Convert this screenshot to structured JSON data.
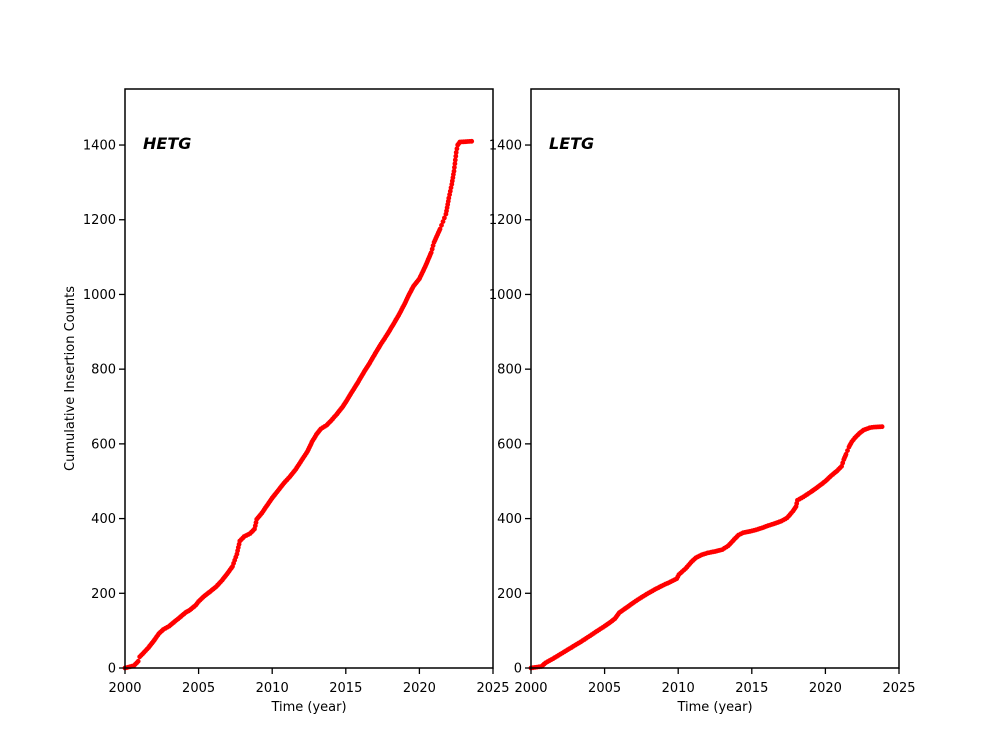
{
  "figure": {
    "background": "#ffffff",
    "marker_color": "#ff0000",
    "axis_color": "#000000"
  },
  "chart_data": [
    {
      "type": "scatter",
      "panel": "left",
      "title": "HETG",
      "xlabel": "Time (year)",
      "ylabel": "Cumulative Insertion Counts",
      "xlim": [
        2000,
        2025
      ],
      "ylim": [
        0,
        1550
      ],
      "xticks": [
        2000,
        2005,
        2010,
        2015,
        2020,
        2025
      ],
      "yticks": [
        0,
        200,
        400,
        600,
        800,
        1000,
        1200,
        1400
      ],
      "grid": false,
      "legend": "none",
      "marker_color": "#ff0000",
      "final_value": 1408,
      "points_note": "cumulative insertion count vs decimal year, anchor points read from plot",
      "points": [
        [
          2000.0,
          0
        ],
        [
          2000.6,
          6
        ],
        [
          2000.9,
          18
        ],
        [
          2001.0,
          30
        ],
        [
          2001.3,
          42
        ],
        [
          2001.6,
          55
        ],
        [
          2002.0,
          75
        ],
        [
          2002.3,
          92
        ],
        [
          2002.6,
          103
        ],
        [
          2003.0,
          112
        ],
        [
          2003.4,
          125
        ],
        [
          2003.8,
          138
        ],
        [
          2004.1,
          148
        ],
        [
          2004.4,
          155
        ],
        [
          2004.8,
          168
        ],
        [
          2005.0,
          178
        ],
        [
          2005.4,
          193
        ],
        [
          2005.8,
          205
        ],
        [
          2006.2,
          218
        ],
        [
          2006.6,
          235
        ],
        [
          2007.0,
          255
        ],
        [
          2007.3,
          272
        ],
        [
          2007.6,
          305
        ],
        [
          2007.8,
          340
        ],
        [
          2008.1,
          352
        ],
        [
          2008.5,
          360
        ],
        [
          2008.8,
          372
        ],
        [
          2008.95,
          398
        ],
        [
          2009.3,
          415
        ],
        [
          2009.7,
          438
        ],
        [
          2010.0,
          455
        ],
        [
          2010.4,
          475
        ],
        [
          2010.8,
          495
        ],
        [
          2011.2,
          512
        ],
        [
          2011.6,
          532
        ],
        [
          2012.0,
          556
        ],
        [
          2012.4,
          580
        ],
        [
          2012.7,
          605
        ],
        [
          2013.0,
          625
        ],
        [
          2013.3,
          640
        ],
        [
          2013.7,
          650
        ],
        [
          2014.0,
          662
        ],
        [
          2014.4,
          680
        ],
        [
          2014.8,
          700
        ],
        [
          2015.0,
          712
        ],
        [
          2015.4,
          738
        ],
        [
          2015.8,
          763
        ],
        [
          2016.2,
          790
        ],
        [
          2016.6,
          815
        ],
        [
          2017.0,
          842
        ],
        [
          2017.4,
          868
        ],
        [
          2017.8,
          892
        ],
        [
          2018.2,
          918
        ],
        [
          2018.6,
          945
        ],
        [
          2019.0,
          975
        ],
        [
          2019.3,
          1000
        ],
        [
          2019.6,
          1022
        ],
        [
          2020.0,
          1042
        ],
        [
          2020.4,
          1075
        ],
        [
          2020.8,
          1112
        ],
        [
          2021.0,
          1140
        ],
        [
          2021.4,
          1175
        ],
        [
          2021.8,
          1215
        ],
        [
          2022.0,
          1258
        ],
        [
          2022.2,
          1295
        ],
        [
          2022.35,
          1330
        ],
        [
          2022.5,
          1380
        ],
        [
          2022.6,
          1400
        ],
        [
          2022.75,
          1408
        ],
        [
          2023.55,
          1410
        ]
      ]
    },
    {
      "type": "scatter",
      "panel": "right",
      "title": "LETG",
      "xlabel": "Time (year)",
      "ylabel": "",
      "xlim": [
        2000,
        2025
      ],
      "ylim": [
        0,
        1550
      ],
      "xticks": [
        2000,
        2005,
        2010,
        2015,
        2020,
        2025
      ],
      "yticks": [
        0,
        200,
        400,
        600,
        800,
        1000,
        1200,
        1400
      ],
      "grid": false,
      "legend": "none",
      "marker_color": "#ff0000",
      "final_value": 645,
      "points_note": "cumulative insertion count vs decimal year, anchor points read from plot",
      "points": [
        [
          2000.0,
          0
        ],
        [
          2000.7,
          4
        ],
        [
          2001.0,
          14
        ],
        [
          2001.5,
          25
        ],
        [
          2002.0,
          37
        ],
        [
          2002.5,
          49
        ],
        [
          2003.0,
          61
        ],
        [
          2003.5,
          73
        ],
        [
          2004.0,
          86
        ],
        [
          2004.5,
          99
        ],
        [
          2005.0,
          112
        ],
        [
          2005.3,
          120
        ],
        [
          2005.7,
          132
        ],
        [
          2006.0,
          148
        ],
        [
          2006.5,
          162
        ],
        [
          2007.0,
          176
        ],
        [
          2007.5,
          189
        ],
        [
          2008.0,
          201
        ],
        [
          2008.5,
          212
        ],
        [
          2009.0,
          222
        ],
        [
          2009.5,
          231
        ],
        [
          2009.9,
          239
        ],
        [
          2010.05,
          250
        ],
        [
          2010.5,
          266
        ],
        [
          2010.9,
          284
        ],
        [
          2011.2,
          295
        ],
        [
          2011.6,
          303
        ],
        [
          2012.0,
          308
        ],
        [
          2012.5,
          312
        ],
        [
          2013.0,
          317
        ],
        [
          2013.4,
          327
        ],
        [
          2013.8,
          344
        ],
        [
          2014.1,
          356
        ],
        [
          2014.4,
          362
        ],
        [
          2014.9,
          366
        ],
        [
          2015.3,
          370
        ],
        [
          2015.7,
          375
        ],
        [
          2016.1,
          381
        ],
        [
          2016.5,
          386
        ],
        [
          2017.0,
          393
        ],
        [
          2017.4,
          402
        ],
        [
          2017.8,
          420
        ],
        [
          2018.0,
          432
        ],
        [
          2018.1,
          449
        ],
        [
          2018.5,
          458
        ],
        [
          2019.0,
          471
        ],
        [
          2019.5,
          485
        ],
        [
          2020.0,
          500
        ],
        [
          2020.4,
          515
        ],
        [
          2020.8,
          528
        ],
        [
          2021.1,
          540
        ],
        [
          2021.25,
          558
        ],
        [
          2021.4,
          572
        ],
        [
          2021.6,
          592
        ],
        [
          2021.8,
          606
        ],
        [
          2022.0,
          616
        ],
        [
          2022.3,
          628
        ],
        [
          2022.6,
          637
        ],
        [
          2023.0,
          643
        ],
        [
          2023.3,
          645
        ],
        [
          2023.85,
          646
        ]
      ]
    }
  ]
}
